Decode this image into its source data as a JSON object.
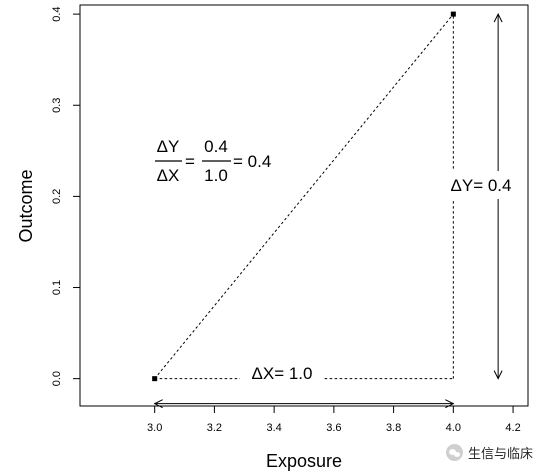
{
  "chart_data": {
    "type": "scatter",
    "xlabel": "Exposure",
    "ylabel": "Outcome",
    "xlim": [
      2.75,
      4.25
    ],
    "ylim": [
      -0.03,
      0.41
    ],
    "x_ticks": [
      "3.0",
      "3.2",
      "3.4",
      "3.6",
      "3.8",
      "4.0",
      "4.2"
    ],
    "y_ticks": [
      "0.0",
      "0.1",
      "0.2",
      "0.3",
      "0.4"
    ],
    "points": [
      {
        "x": 3.0,
        "y": 0.0
      },
      {
        "x": 4.0,
        "y": 0.4
      }
    ],
    "grid": false,
    "annotations": {
      "slope": {
        "num": "ΔY",
        "den": "ΔX",
        "eq1": "=",
        "num2": "0.4",
        "den2": "1.0",
        "eq2": "= 0.4"
      },
      "delta_x": "ΔX= 1.0",
      "delta_y": "ΔY= 0.4"
    }
  },
  "watermark": {
    "text": "生信与临床",
    "icon": "wechat-icon"
  }
}
